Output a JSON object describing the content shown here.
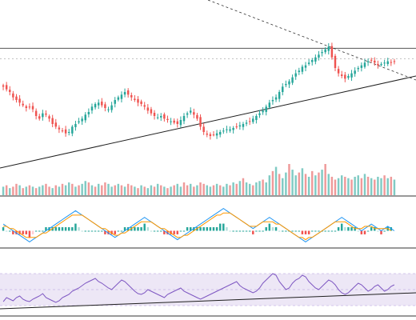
{
  "colors": {
    "up": "#26a69a",
    "down": "#ef5350",
    "trendline": "#1f1f1f",
    "resistance": "#555555",
    "macd_line": "#2196f3",
    "signal_line": "#ff9800",
    "hist_up_strong": "#26a69a",
    "hist_up_weak": "#b2dfdb",
    "hist_down_strong": "#ef5350",
    "hist_down_weak": "#ffcdd2",
    "rsi_line": "#7e57c2",
    "rsi_band": "#ede7f6",
    "separator": "#333333"
  },
  "chart_data": [
    {
      "type": "candlestick",
      "title": "",
      "x_count": 120,
      "ylim": [
        0,
        100
      ],
      "ohlc_path_close": [
        70,
        68,
        66,
        62,
        60,
        58,
        56,
        54,
        55,
        53,
        48,
        46,
        50,
        49,
        46,
        42,
        40,
        38,
        37,
        35,
        36,
        40,
        42,
        44,
        46,
        49,
        51,
        55,
        57,
        58,
        56,
        54,
        53,
        56,
        60,
        62,
        64,
        66,
        64,
        62,
        60,
        58,
        57,
        55,
        52,
        50,
        48,
        47,
        48,
        46,
        45,
        44,
        43,
        42,
        45,
        48,
        50,
        52,
        49,
        46,
        40,
        36,
        34,
        33,
        34,
        35,
        36,
        37,
        38,
        38,
        39,
        40,
        41,
        42,
        43,
        44,
        46,
        48,
        50,
        52,
        55,
        58,
        60,
        62,
        66,
        70,
        72,
        74,
        77,
        80,
        82,
        85,
        86,
        88,
        90,
        92,
        94,
        96,
        98,
        100,
        92,
        84,
        80,
        78,
        76,
        78,
        80,
        82,
        84,
        86,
        88,
        89,
        90,
        88,
        86,
        87,
        88,
        89,
        88,
        89
      ],
      "resistance_level": 100,
      "support_trendline": {
        "start": [
          0,
          0
        ],
        "end": [
          120,
          82
        ]
      },
      "descending_trendline": {
        "start": [
          50,
          140
        ],
        "end": [
          120,
          82
        ]
      },
      "dotted_level": 92
    },
    {
      "type": "bar",
      "title": "",
      "series_name": "",
      "values": [
        6,
        7,
        5,
        6,
        8,
        7,
        5,
        6,
        7,
        6,
        5,
        6,
        7,
        8,
        6,
        5,
        7,
        6,
        8,
        7,
        9,
        8,
        6,
        7,
        8,
        10,
        9,
        7,
        6,
        8,
        7,
        9,
        8,
        6,
        7,
        8,
        7,
        6,
        8,
        7,
        6,
        5,
        7,
        6,
        5,
        7,
        6,
        8,
        7,
        6,
        5,
        6,
        7,
        8,
        6,
        9,
        7,
        8,
        6,
        7,
        9,
        8,
        7,
        6,
        7,
        8,
        7,
        6,
        8,
        7,
        9,
        8,
        10,
        12,
        9,
        8,
        7,
        9,
        10,
        11,
        9,
        14,
        17,
        20,
        15,
        12,
        16,
        22,
        18,
        14,
        16,
        19,
        15,
        13,
        17,
        14,
        16,
        18,
        22,
        15,
        13,
        11,
        12,
        14,
        13,
        12,
        11,
        13,
        14,
        12,
        15,
        13,
        12,
        11,
        13,
        12,
        14,
        12,
        13,
        11
      ],
      "up_flags": [
        1,
        0,
        1,
        0,
        0,
        1,
        0,
        1,
        0,
        1,
        0,
        1,
        1,
        0,
        0,
        1,
        0,
        1,
        0,
        1,
        1,
        0,
        1,
        0,
        1,
        1,
        0,
        1,
        0,
        1,
        0,
        0,
        1,
        1,
        0,
        1,
        0,
        1,
        0,
        0,
        1,
        0,
        1,
        0,
        1,
        1,
        0,
        1,
        0,
        1,
        0,
        1,
        0,
        1,
        1,
        0,
        0,
        1,
        0,
        1,
        0,
        0,
        1,
        1,
        0,
        1,
        0,
        1,
        1,
        0,
        1,
        0,
        1,
        0,
        1,
        1,
        0,
        1,
        1,
        0,
        1,
        1,
        0,
        1,
        0,
        1,
        1,
        0,
        1,
        1,
        0,
        1,
        0,
        1,
        0,
        1,
        0,
        1,
        0,
        1,
        0,
        0,
        1,
        1,
        0,
        1,
        0,
        1,
        1,
        0,
        1,
        0,
        1,
        0,
        1,
        1,
        0,
        1,
        0,
        1
      ]
    },
    {
      "type": "line",
      "title": "",
      "macd": [
        3,
        2,
        1,
        0,
        -1,
        -2,
        -3,
        -4,
        -5,
        -4,
        -3,
        -2,
        -1,
        0,
        1,
        2,
        3,
        4,
        5,
        6,
        7,
        8,
        9,
        8,
        7,
        6,
        5,
        4,
        3,
        2,
        1,
        0,
        -1,
        -2,
        -3,
        -2,
        -1,
        0,
        1,
        2,
        3,
        4,
        5,
        6,
        5,
        4,
        3,
        2,
        1,
        0,
        -1,
        -2,
        -3,
        -4,
        -3,
        -2,
        -1,
        0,
        1,
        2,
        3,
        4,
        5,
        6,
        7,
        8,
        9,
        10,
        9,
        8,
        7,
        6,
        5,
        4,
        3,
        2,
        1,
        2,
        3,
        4,
        5,
        6,
        5,
        4,
        3,
        2,
        1,
        0,
        -1,
        -2,
        -3,
        -4,
        -5,
        -4,
        -3,
        -2,
        -1,
        0,
        1,
        2,
        3,
        4,
        5,
        6,
        5,
        4,
        3,
        2,
        1,
        0,
        1,
        2,
        3,
        2,
        1,
        0,
        1,
        2,
        1,
        0
      ],
      "signal": [
        2,
        2,
        1,
        1,
        0,
        -1,
        -2,
        -3,
        -3,
        -3,
        -3,
        -2,
        -1,
        -1,
        0,
        1,
        2,
        3,
        4,
        5,
        6,
        7,
        7,
        7,
        7,
        6,
        5,
        4,
        3,
        2,
        1,
        1,
        0,
        -1,
        -2,
        -2,
        -1,
        -1,
        0,
        1,
        2,
        3,
        4,
        4,
        4,
        4,
        3,
        2,
        1,
        1,
        0,
        -1,
        -2,
        -3,
        -3,
        -2,
        -2,
        -1,
        0,
        1,
        2,
        3,
        4,
        5,
        6,
        7,
        7,
        8,
        8,
        8,
        7,
        6,
        5,
        4,
        3,
        2,
        2,
        2,
        3,
        4,
        4,
        4,
        4,
        3,
        3,
        2,
        1,
        0,
        -1,
        -2,
        -3,
        -3,
        -4,
        -3,
        -3,
        -2,
        -1,
        0,
        1,
        2,
        3,
        4,
        4,
        4,
        4,
        3,
        2,
        1,
        1,
        1,
        2,
        2,
        2,
        1,
        1,
        1,
        1,
        1,
        0
      ],
      "ylim": [
        -7,
        12
      ]
    },
    {
      "type": "line",
      "title": "",
      "rsi": [
        35,
        40,
        38,
        36,
        40,
        42,
        38,
        36,
        35,
        38,
        40,
        42,
        45,
        40,
        38,
        36,
        34,
        36,
        40,
        42,
        44,
        48,
        50,
        52,
        55,
        58,
        60,
        62,
        64,
        60,
        58,
        55,
        52,
        50,
        54,
        58,
        62,
        60,
        56,
        52,
        48,
        45,
        44,
        46,
        50,
        48,
        46,
        44,
        42,
        40,
        44,
        46,
        48,
        50,
        52,
        48,
        46,
        44,
        42,
        40,
        38,
        40,
        42,
        44,
        46,
        48,
        50,
        52,
        54,
        56,
        58,
        60,
        55,
        52,
        50,
        48,
        46,
        48,
        52,
        58,
        62,
        66,
        70,
        68,
        60,
        55,
        50,
        52,
        58,
        62,
        64,
        68,
        66,
        60,
        56,
        52,
        50,
        54,
        58,
        62,
        60,
        56,
        50,
        46,
        44,
        46,
        50,
        54,
        58,
        56,
        52,
        48,
        50,
        54,
        56,
        52,
        48,
        50,
        54,
        56
      ],
      "ylim": [
        20,
        90
      ],
      "overbought": 70,
      "oversold": 30,
      "support_trendline": {
        "start": [
          0,
          22
        ],
        "end": [
          120,
          40
        ]
      }
    }
  ]
}
